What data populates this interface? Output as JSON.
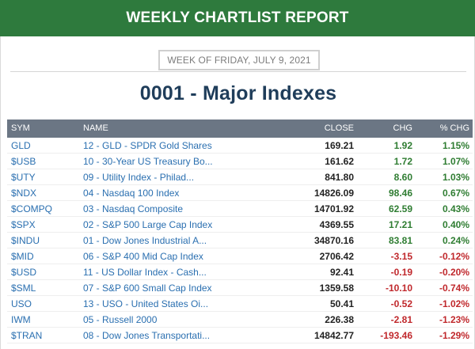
{
  "banner": {
    "title": "WEEKLY CHARTLIST REPORT"
  },
  "week": {
    "label": "WEEK OF FRIDAY, JULY 9, 2021"
  },
  "list": {
    "title": "0001 - Major Indexes"
  },
  "colors": {
    "banner": "#2e7a3d",
    "header": "#6b7684",
    "link": "#2a6fb0",
    "positive": "#2f7d32",
    "negative": "#c0282c"
  },
  "table": {
    "headers": {
      "sym": "SYM",
      "name": "NAME",
      "close": "CLOSE",
      "chg": "CHG",
      "pct": "% CHG"
    },
    "rows": [
      {
        "sym": "GLD",
        "name": "12 - GLD - SPDR Gold Shares",
        "close": "169.21",
        "chg": "1.92",
        "pct": "1.15%",
        "dir": "pos"
      },
      {
        "sym": "$USB",
        "name": "10 - 30-Year US Treasury Bo...",
        "close": "161.62",
        "chg": "1.72",
        "pct": "1.07%",
        "dir": "pos"
      },
      {
        "sym": "$UTY",
        "name": "09 - Utility Index - Philad...",
        "close": "841.80",
        "chg": "8.60",
        "pct": "1.03%",
        "dir": "pos"
      },
      {
        "sym": "$NDX",
        "name": "04 - Nasdaq 100 Index",
        "close": "14826.09",
        "chg": "98.46",
        "pct": "0.67%",
        "dir": "pos"
      },
      {
        "sym": "$COMPQ",
        "name": "03 - Nasdaq Composite",
        "close": "14701.92",
        "chg": "62.59",
        "pct": "0.43%",
        "dir": "pos"
      },
      {
        "sym": "$SPX",
        "name": "02 - S&P 500 Large Cap Index",
        "close": "4369.55",
        "chg": "17.21",
        "pct": "0.40%",
        "dir": "pos"
      },
      {
        "sym": "$INDU",
        "name": "01 - Dow Jones Industrial A...",
        "close": "34870.16",
        "chg": "83.81",
        "pct": "0.24%",
        "dir": "pos"
      },
      {
        "sym": "$MID",
        "name": "06 - S&P 400 Mid Cap Index",
        "close": "2706.42",
        "chg": "-3.15",
        "pct": "-0.12%",
        "dir": "neg"
      },
      {
        "sym": "$USD",
        "name": "11 - US Dollar Index - Cash...",
        "close": "92.41",
        "chg": "-0.19",
        "pct": "-0.20%",
        "dir": "neg"
      },
      {
        "sym": "$SML",
        "name": "07 - S&P 600 Small Cap Index",
        "close": "1359.58",
        "chg": "-10.10",
        "pct": "-0.74%",
        "dir": "neg"
      },
      {
        "sym": "USO",
        "name": "13 - USO - United States Oi...",
        "close": "50.41",
        "chg": "-0.52",
        "pct": "-1.02%",
        "dir": "neg"
      },
      {
        "sym": "IWM",
        "name": "05 - Russell 2000",
        "close": "226.38",
        "chg": "-2.81",
        "pct": "-1.23%",
        "dir": "neg"
      },
      {
        "sym": "$TRAN",
        "name": "08 - Dow Jones Transportati...",
        "close": "14842.77",
        "chg": "-193.46",
        "pct": "-1.29%",
        "dir": "neg"
      }
    ]
  }
}
